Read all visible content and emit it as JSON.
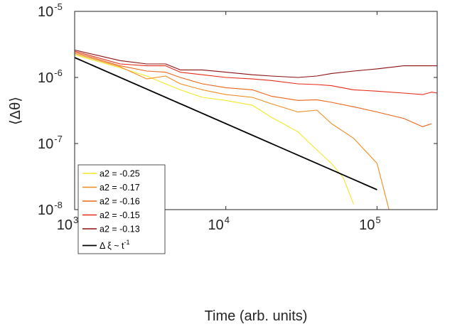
{
  "chart_data": {
    "type": "line",
    "x_scale": "log",
    "y_scale": "log",
    "xlabel": "Time (arb. units)",
    "ylabel": "⟨Δθ⟩",
    "xlim": [
      1000,
      250000
    ],
    "ylim": [
      1e-08,
      1e-05
    ],
    "x_ticks": [
      {
        "base": "10",
        "exp": "3",
        "value": 1000
      },
      {
        "base": "10",
        "exp": "4",
        "value": 10000
      },
      {
        "base": "10",
        "exp": "5",
        "value": 100000
      }
    ],
    "y_ticks": [
      {
        "base": "10",
        "exp": "-8",
        "value": 1e-08
      },
      {
        "base": "10",
        "exp": "-7",
        "value": 1e-07
      },
      {
        "base": "10",
        "exp": "-6",
        "value": 1e-06
      },
      {
        "base": "10",
        "exp": "-5",
        "value": 1e-05
      }
    ],
    "grid": false,
    "legend_position": "bottom-left",
    "series": [
      {
        "name": "a2 = -0.25",
        "color": "#f2e829",
        "x": [
          1000,
          2000,
          3000,
          4000,
          5000,
          7000,
          10000,
          15000,
          20000,
          30000,
          40000,
          50000,
          60000,
          70000
        ],
        "y": [
          2.2e-06,
          1.4e-06,
          1.05e-06,
          8e-07,
          6.5e-07,
          5e-07,
          4.5e-07,
          3.8e-07,
          2.5e-07,
          1.5e-07,
          8e-08,
          5e-08,
          3e-08,
          1.2e-08
        ]
      },
      {
        "name": "a2 = -0.17",
        "color": "#f08c1e",
        "x": [
          1000,
          2000,
          3000,
          4000,
          5000,
          7000,
          10000,
          15000,
          20000,
          30000,
          40000,
          50000,
          70000,
          100000,
          120000
        ],
        "y": [
          2.3e-06,
          1.45e-06,
          9.5e-07,
          1.05e-06,
          8e-07,
          6.5e-07,
          5.5e-07,
          5e-07,
          4e-07,
          3e-07,
          3.2e-07,
          2e-07,
          1.2e-07,
          5e-08,
          1e-08
        ]
      },
      {
        "name": "a2 = -0.16",
        "color": "#ee6418",
        "x": [
          1000,
          2000,
          3000,
          4000,
          5000,
          7000,
          10000,
          15000,
          20000,
          30000,
          40000,
          50000,
          70000,
          100000,
          150000,
          200000,
          230000
        ],
        "y": [
          2.4e-06,
          1.5e-06,
          1.25e-06,
          1.2e-06,
          1e-06,
          8e-07,
          7e-07,
          6.5e-07,
          5.2e-07,
          4.5e-07,
          4.6e-07,
          4.2e-07,
          3.6e-07,
          3e-07,
          2.4e-07,
          1.8e-07,
          2e-07
        ]
      },
      {
        "name": "a2 = -0.15",
        "color": "#e52b18",
        "x": [
          1000,
          2000,
          3000,
          4000,
          5000,
          7000,
          10000,
          15000,
          20000,
          30000,
          40000,
          50000,
          70000,
          100000,
          150000,
          200000,
          230000,
          250000
        ],
        "y": [
          2.5e-06,
          1.6e-06,
          1.5e-06,
          1.5e-06,
          1.2e-06,
          1.1e-06,
          1e-06,
          9.5e-07,
          9e-07,
          8e-07,
          7.8e-07,
          7.5e-07,
          6.5e-07,
          6.2e-07,
          5.8e-07,
          5.5e-07,
          6e-07,
          5.8e-07
        ]
      },
      {
        "name": "a2 = -0.13",
        "color": "#8b0f0f",
        "x": [
          1000,
          2000,
          3000,
          4000,
          5000,
          7000,
          10000,
          15000,
          20000,
          30000,
          40000,
          50000,
          70000,
          100000,
          150000,
          200000,
          250000
        ],
        "y": [
          2.6e-06,
          1.8e-06,
          1.6e-06,
          1.6e-06,
          1.3e-06,
          1.3e-06,
          1.2e-06,
          1.1e-06,
          1.05e-06,
          1e-06,
          1.05e-06,
          1.15e-06,
          1.25e-06,
          1.35e-06,
          1.5e-06,
          1.5e-06,
          1.5e-06
        ]
      },
      {
        "name": "Δ ξ ~ t⁻¹",
        "color": "#000000",
        "x": [
          1000,
          100000
        ],
        "y": [
          2e-06,
          2e-08
        ]
      }
    ]
  },
  "legend_items": [
    {
      "label": "a2 = -0.25",
      "color": "#f2e829"
    },
    {
      "label": "a2 = -0.17",
      "color": "#f08c1e"
    },
    {
      "label": "a2 = -0.16",
      "color": "#ee6418"
    },
    {
      "label": "a2 = -0.15",
      "color": "#e52b18"
    },
    {
      "label": "a2 = -0.13",
      "color": "#8b0f0f"
    }
  ],
  "legend_fit": {
    "text_main": "Δ ξ ~ t",
    "text_sup": "-1",
    "color": "#000000"
  }
}
